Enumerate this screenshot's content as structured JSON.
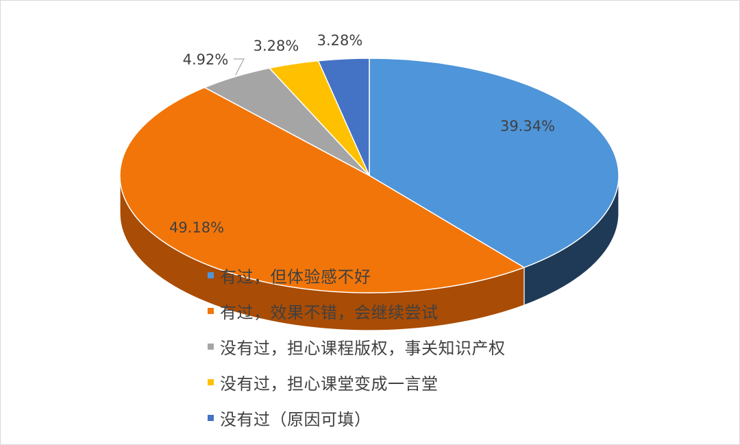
{
  "chart_data": {
    "type": "pie",
    "style": "3d",
    "categories": [
      "有过，但体验感不好",
      "有过，效果不错，会继续尝试",
      "没有过，担心课程版权，事关知识产权",
      "没有过，担心课堂变成一言堂",
      "没有过（原因可填）"
    ],
    "values": [
      39.34,
      49.18,
      4.92,
      3.28,
      3.28
    ],
    "data_labels": [
      "39.34%",
      "49.18%",
      "4.92%",
      "3.28%",
      "3.28%"
    ],
    "colors": [
      "#4e95d9",
      "#f27509",
      "#a5a5a5",
      "#ffc000",
      "#4472c4"
    ],
    "side_colors": [
      "#1f3a57",
      "#a94c05",
      "#6e6e6e",
      "#b38600",
      "#2f4f8a"
    ],
    "legend_position": "bottom-left overlapping"
  }
}
